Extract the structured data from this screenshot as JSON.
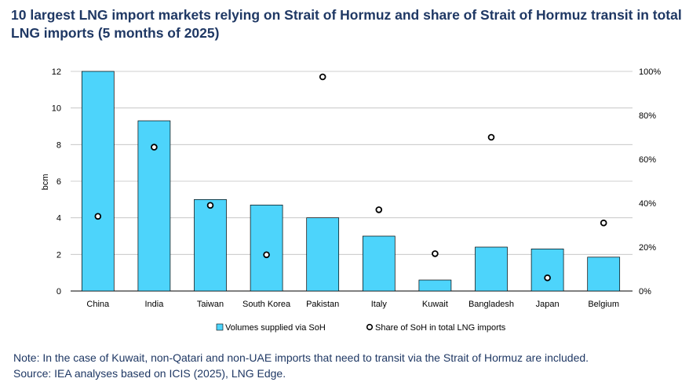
{
  "title": "10 largest LNG import markets relying on Strait of Hormuz and share of Strait of Hormuz transit in total LNG imports (5 months of 2025)",
  "notes": {
    "note": "Note: In the case of Kuwait, non-Qatari and non-UAE imports that need to transit via the Strait of Hormuz are included.",
    "source": "Source: IEA analyses based on ICIS (2025), LNG Edge."
  },
  "colors": {
    "bar": "#4dd4fb",
    "bar_outline": "#000000",
    "text": "#1f3864"
  },
  "chart_data": {
    "type": "bar",
    "categories": [
      "China",
      "India",
      "Taiwan",
      "South Korea",
      "Pakistan",
      "Italy",
      "Kuwait",
      "Bangladesh",
      "Japan",
      "Belgium"
    ],
    "series": [
      {
        "name": "Volumes supplied via SoH",
        "type": "bar",
        "axis": "left",
        "values": [
          12.0,
          9.3,
          5.0,
          4.7,
          4.0,
          3.0,
          0.6,
          2.4,
          2.3,
          1.85
        ]
      },
      {
        "name": "Share of SoH in total LNG imports",
        "type": "scatter",
        "axis": "right",
        "values": [
          0.34,
          0.655,
          0.39,
          0.165,
          0.975,
          0.37,
          0.17,
          0.7,
          0.06,
          0.31
        ]
      }
    ],
    "ylabel": "bcm",
    "ylim": [
      0,
      12
    ],
    "yticks": [
      "0",
      "2",
      "4",
      "6",
      "8",
      "10",
      "12"
    ],
    "y2lim": [
      0,
      1
    ],
    "y2ticks": [
      "0%",
      "20%",
      "40%",
      "60%",
      "80%",
      "100%"
    ],
    "grid": true,
    "legend": "bottom"
  }
}
